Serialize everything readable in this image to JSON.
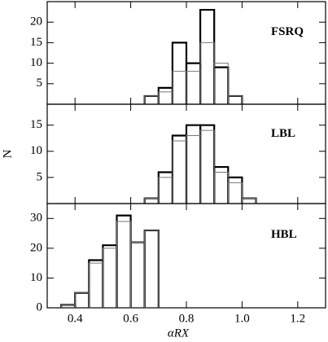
{
  "chart_data": [
    {
      "type": "histogram",
      "label": "FSRQ",
      "bins": [
        0.65,
        0.7,
        0.75,
        0.8,
        0.85,
        0.9,
        0.95,
        1.0
      ],
      "series": [
        {
          "color": "#000000",
          "values": [
            2,
            4,
            15,
            10,
            23,
            9,
            2
          ]
        },
        {
          "color": "#777777",
          "values": [
            2,
            3,
            8,
            8,
            15,
            10,
            2
          ]
        }
      ],
      "xlim": [
        0.3,
        1.3
      ],
      "ylim": [
        0,
        25
      ],
      "yticks": [
        5,
        10,
        15,
        20
      ],
      "xticks": [
        0.4,
        0.6,
        0.8,
        {
          "value": 1,
          "label": "1.0"
        },
        1.2
      ]
    },
    {
      "type": "histogram",
      "label": "LBL",
      "ylabel": "N",
      "bins": [
        0.65,
        0.7,
        0.75,
        0.8,
        0.85,
        0.9,
        0.95,
        1.0,
        1.05
      ],
      "series": [
        {
          "color": "#000000",
          "values": [
            1,
            6,
            13,
            15,
            15,
            7,
            5,
            1
          ]
        },
        {
          "color": "#777777",
          "values": [
            1,
            5,
            12,
            13,
            14,
            6,
            4,
            1
          ]
        }
      ],
      "xlim": [
        0.3,
        1.3
      ],
      "ylim": [
        0,
        19
      ],
      "yticks": [
        5,
        10,
        15
      ],
      "xticks": [
        0.4,
        0.6,
        0.8,
        {
          "value": 1,
          "label": "1.0"
        },
        1.2
      ]
    },
    {
      "type": "histogram",
      "label": "HBL",
      "xlabel": "αRX",
      "bins": [
        0.35,
        0.4,
        0.45,
        0.5,
        0.55,
        0.6,
        0.65,
        0.7
      ],
      "series": [
        {
          "color": "#000000",
          "values": [
            1,
            5,
            16,
            21,
            31,
            22,
            26
          ]
        },
        {
          "color": "#777777",
          "values": [
            1,
            5,
            15,
            20,
            29,
            22,
            26
          ]
        }
      ],
      "xlim": [
        0.3,
        1.3
      ],
      "ylim": [
        0,
        35
      ],
      "yticks": [
        0,
        10,
        20,
        30
      ],
      "xticks": [
        0.4,
        0.6,
        0.8,
        {
          "value": 1,
          "label": "1.0"
        },
        1.2
      ]
    }
  ]
}
